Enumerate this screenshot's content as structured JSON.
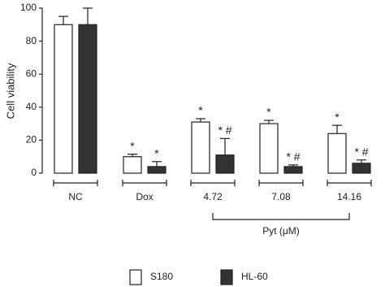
{
  "chart_data": {
    "type": "bar",
    "y_label": "Cell viability",
    "group_label": "Pyt (μM)",
    "categories": [
      "NC",
      "Dox",
      "4.72",
      "7.08",
      "14.16"
    ],
    "series": [
      {
        "name": "S180",
        "color": "#ffffff",
        "values": [
          90,
          10,
          31,
          30,
          24
        ],
        "errors": [
          5,
          1.5,
          2,
          2,
          5
        ],
        "annotations": [
          null,
          "*",
          "*",
          "*",
          "*"
        ]
      },
      {
        "name": "HL-60",
        "color": "#333333",
        "values": [
          90,
          4,
          11,
          4,
          6
        ],
        "errors": [
          10,
          3,
          10,
          1,
          2
        ],
        "annotations": [
          null,
          "*",
          "* #",
          "* #",
          "* #"
        ]
      }
    ],
    "ylim": [
      0,
      100
    ],
    "yticks": [
      0,
      20,
      40,
      60,
      80,
      100
    ]
  }
}
